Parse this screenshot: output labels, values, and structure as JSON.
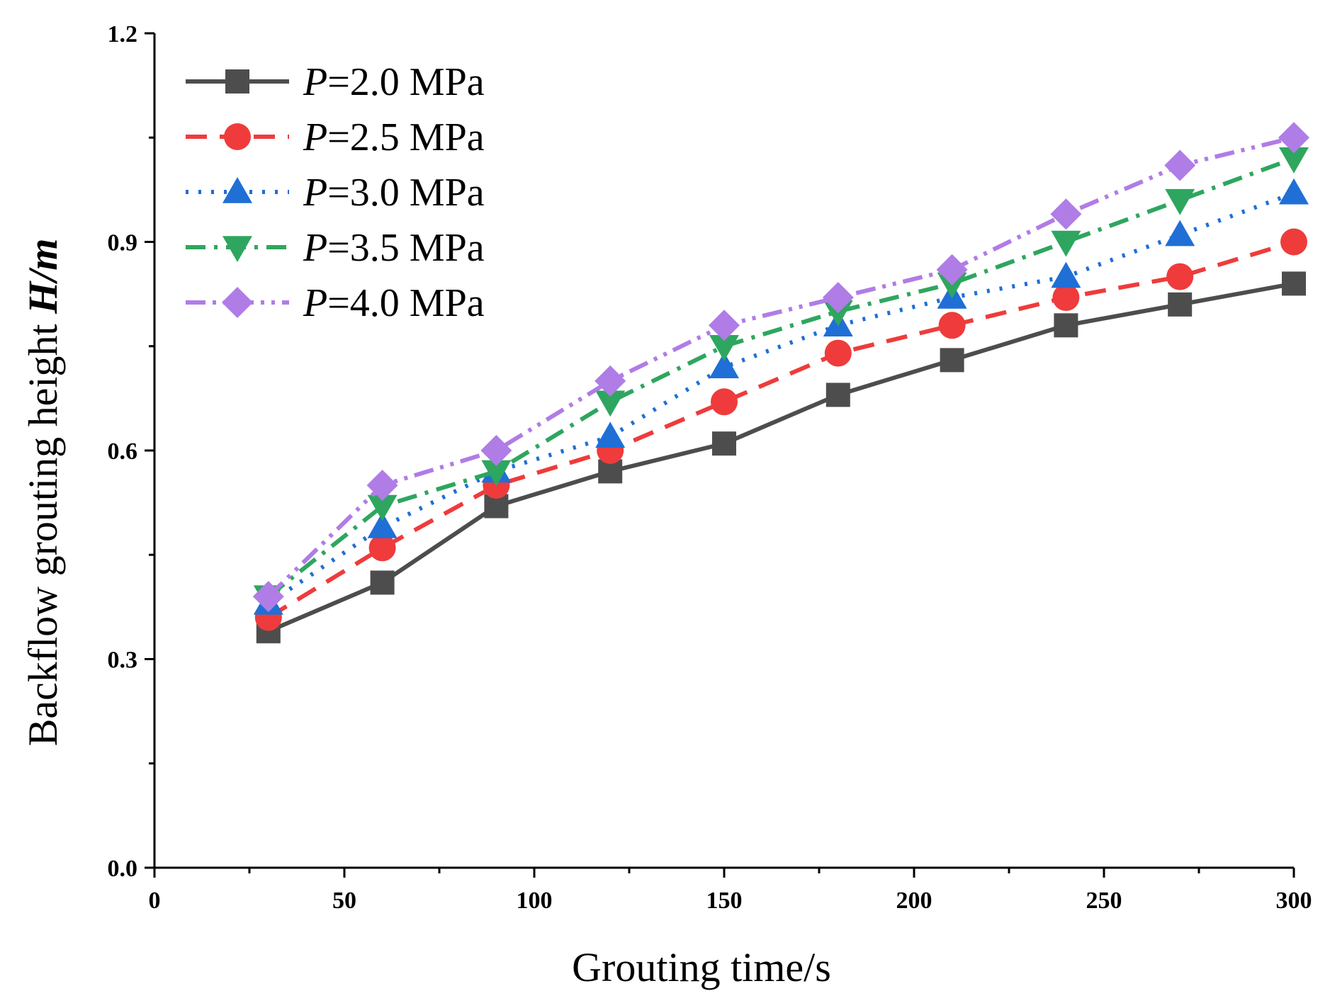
{
  "chart_data": {
    "type": "line",
    "xlabel": "Grouting time/s",
    "ylabel": {
      "prefix": "Backflow grouting height ",
      "var": "H/m"
    },
    "xlim": [
      0,
      300
    ],
    "ylim": [
      0,
      1.2
    ],
    "xticks": [
      0,
      50,
      100,
      150,
      200,
      250,
      300
    ],
    "yticks": [
      0.0,
      0.3,
      0.6,
      0.9,
      1.2
    ],
    "x": [
      30,
      60,
      90,
      120,
      150,
      180,
      210,
      240,
      270,
      300
    ],
    "legend_position": "top-left",
    "series": [
      {
        "name": "P=2.0 MPa",
        "label_var": "P",
        "label_rest": "=2.0 MPa",
        "color": "#4d4d4d",
        "marker": "square",
        "dash": "solid",
        "values": [
          0.34,
          0.41,
          0.52,
          0.57,
          0.61,
          0.68,
          0.73,
          0.78,
          0.81,
          0.84
        ]
      },
      {
        "name": "P=2.5 MPa",
        "label_var": "P",
        "label_rest": "=2.5 MPa",
        "color": "#ef3b3b",
        "marker": "circle",
        "dash": "dash",
        "values": [
          0.36,
          0.46,
          0.55,
          0.6,
          0.67,
          0.74,
          0.78,
          0.82,
          0.85,
          0.9
        ]
      },
      {
        "name": "P=3.0 MPa",
        "label_var": "P",
        "label_rest": "=3.0 MPa",
        "color": "#1f6fd6",
        "marker": "triangle-up",
        "dash": "dot",
        "values": [
          0.38,
          0.49,
          0.57,
          0.62,
          0.72,
          0.78,
          0.82,
          0.85,
          0.91,
          0.97
        ]
      },
      {
        "name": "P=3.5 MPa",
        "label_var": "P",
        "label_rest": "=3.5 MPa",
        "color": "#2ea65f",
        "marker": "triangle-down",
        "dash": "dashdot",
        "values": [
          0.39,
          0.52,
          0.57,
          0.67,
          0.75,
          0.8,
          0.84,
          0.9,
          0.96,
          1.02
        ]
      },
      {
        "name": "P=4.0 MPa",
        "label_var": "P",
        "label_rest": "=4.0 MPa",
        "color": "#b07ce6",
        "marker": "diamond",
        "dash": "dashdotdot",
        "values": [
          0.39,
          0.55,
          0.6,
          0.7,
          0.78,
          0.82,
          0.86,
          0.94,
          1.01,
          1.05
        ]
      }
    ]
  }
}
